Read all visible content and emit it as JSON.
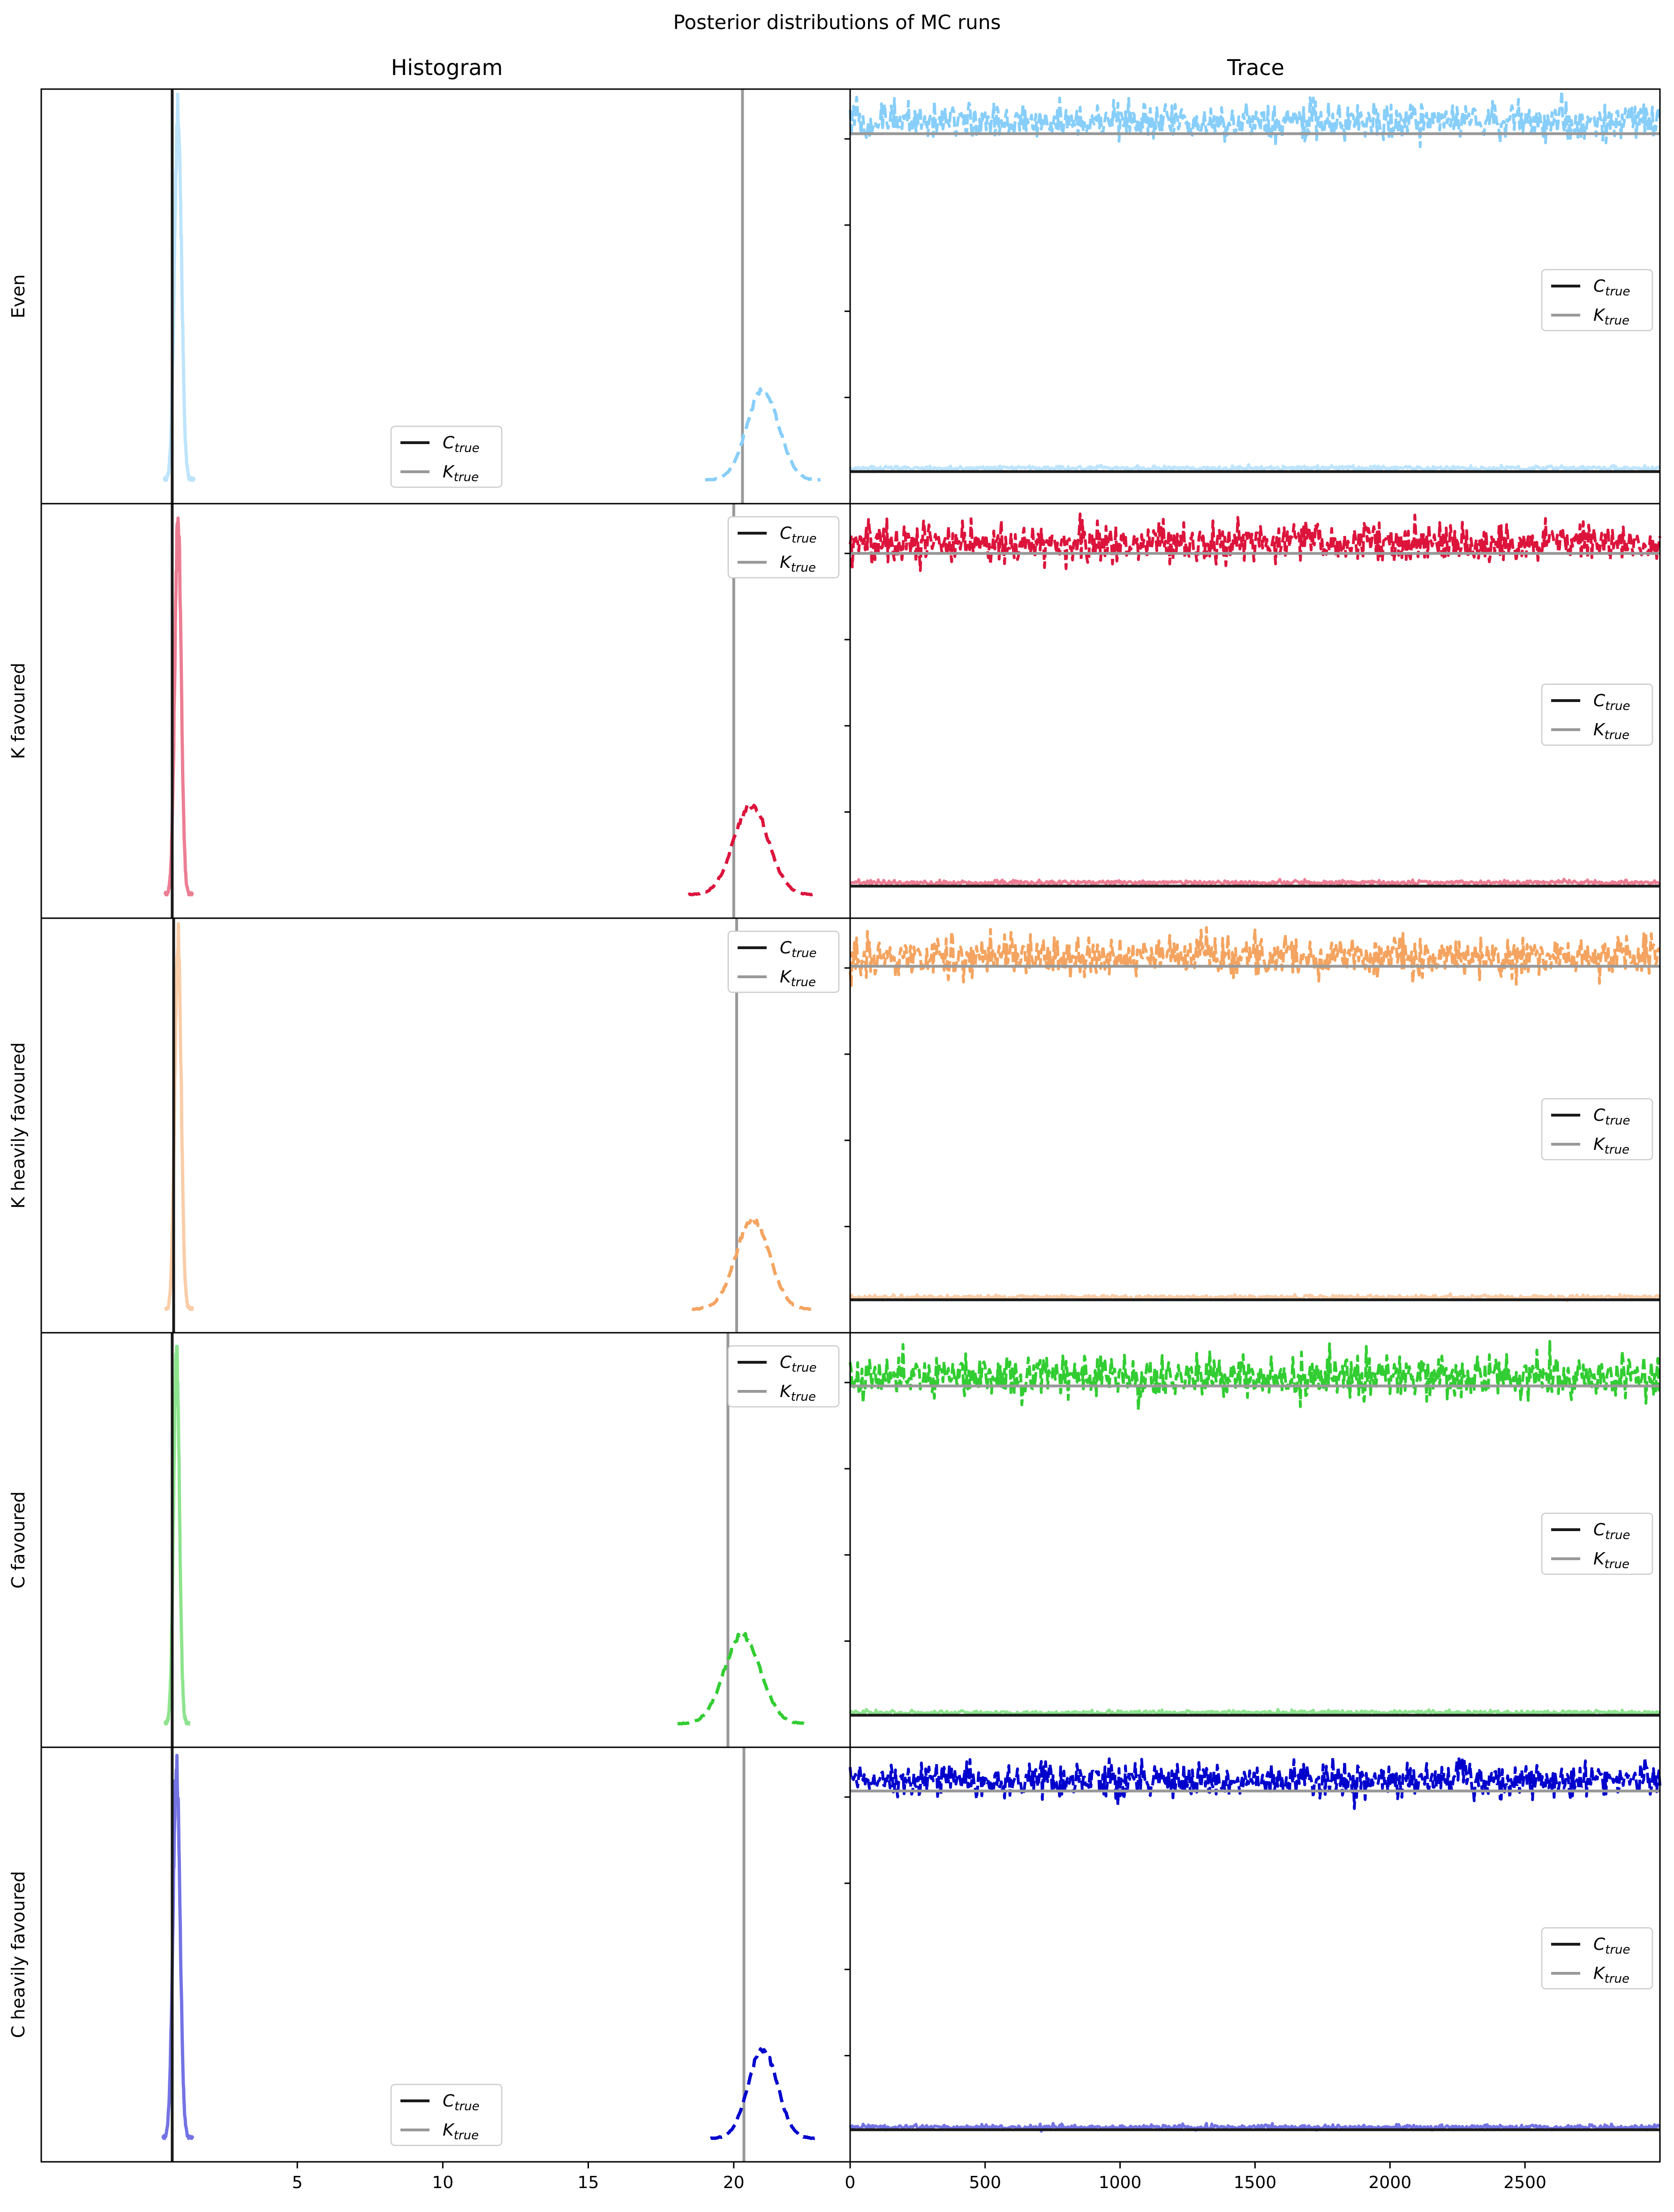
{
  "figure": {
    "suptitle": "Posterior distributions of MC runs",
    "col_titles": [
      "Histogram",
      "Trace"
    ]
  },
  "chart_data": [
    {
      "type": "line",
      "panel": "histogram",
      "row_label": "Even",
      "color": "#87cefa",
      "C_true": 0.7,
      "K_true": 20.3,
      "C_posterior": {
        "mean": 0.9,
        "sd": 0.12
      },
      "K_posterior": {
        "mean": 21.0,
        "sd": 0.55
      },
      "xlim": [
        -3.8,
        24
      ],
      "xticks": [
        5,
        10,
        15,
        20
      ],
      "legend": {
        "placement": "lower center",
        "entries": [
          "C_true",
          "K_true"
        ]
      }
    },
    {
      "type": "line",
      "panel": "histogram",
      "row_label": "K favoured",
      "color": "#dc143c",
      "C_true": 0.7,
      "K_true": 20.0,
      "C_posterior": {
        "mean": 0.9,
        "sd": 0.11
      },
      "K_posterior": {
        "mean": 20.6,
        "sd": 0.6
      },
      "xlim": [
        -3.8,
        24
      ],
      "xticks": [
        5,
        10,
        15,
        20
      ],
      "legend": {
        "placement": "upper right",
        "entries": [
          "C_true",
          "K_true"
        ]
      }
    },
    {
      "type": "line",
      "panel": "histogram",
      "row_label": "K heavily favoured",
      "color": "#f4a460",
      "C_true": 0.75,
      "K_true": 20.1,
      "C_posterior": {
        "mean": 0.9,
        "sd": 0.11
      },
      "K_posterior": {
        "mean": 20.65,
        "sd": 0.58
      },
      "xlim": [
        -3.8,
        24
      ],
      "xticks": [
        5,
        10,
        15,
        20
      ],
      "legend": {
        "placement": "upper right",
        "entries": [
          "C_true",
          "K_true"
        ]
      }
    },
    {
      "type": "line",
      "panel": "histogram",
      "row_label": "C favoured",
      "color": "#32cd32",
      "C_true": 0.7,
      "K_true": 19.8,
      "C_posterior": {
        "mean": 0.85,
        "sd": 0.1
      },
      "K_posterior": {
        "mean": 20.3,
        "sd": 0.62
      },
      "xlim": [
        -3.8,
        24
      ],
      "xticks": [
        5,
        10,
        15,
        20
      ],
      "legend": {
        "placement": "upper right",
        "entries": [
          "C_true",
          "K_true"
        ]
      }
    },
    {
      "type": "line",
      "panel": "histogram",
      "row_label": "C heavily favoured",
      "color": "#0000cd",
      "C_true": 0.7,
      "K_true": 20.35,
      "C_posterior": {
        "mean": 0.85,
        "sd": 0.12
      },
      "K_posterior": {
        "mean": 21.0,
        "sd": 0.5
      },
      "xlim": [
        -3.8,
        24
      ],
      "xticks": [
        5,
        10,
        15,
        20
      ],
      "legend": {
        "placement": "lower center",
        "entries": [
          "C_true",
          "K_true"
        ]
      }
    },
    {
      "type": "line",
      "panel": "trace",
      "row_label": "Even",
      "color": "#87cefa",
      "n_samples": 3000,
      "K_true": 20.3,
      "C_true": 0.7,
      "K_trace": {
        "mean": 21.0,
        "sd": 0.55
      },
      "C_trace": {
        "mean": 0.9,
        "sd": 0.12
      },
      "xlim": [
        0,
        3000
      ],
      "xticks": [
        0,
        500,
        1000,
        1500,
        2000,
        2500
      ],
      "legend": {
        "placement": "center right",
        "entries": [
          "C_true",
          "K_true"
        ]
      }
    },
    {
      "type": "line",
      "panel": "trace",
      "row_label": "K favoured",
      "color": "#dc143c",
      "n_samples": 3000,
      "K_true": 20.0,
      "C_true": 0.7,
      "K_trace": {
        "mean": 20.6,
        "sd": 0.6
      },
      "C_trace": {
        "mean": 0.9,
        "sd": 0.11
      },
      "xlim": [
        0,
        3000
      ],
      "xticks": [
        0,
        500,
        1000,
        1500,
        2000,
        2500
      ],
      "legend": {
        "placement": "center right",
        "entries": [
          "C_true",
          "K_true"
        ]
      }
    },
    {
      "type": "line",
      "panel": "trace",
      "row_label": "K heavily favoured",
      "color": "#f4a460",
      "n_samples": 3000,
      "K_true": 20.1,
      "C_true": 0.75,
      "K_trace": {
        "mean": 20.65,
        "sd": 0.58
      },
      "C_trace": {
        "mean": 0.9,
        "sd": 0.11
      },
      "xlim": [
        0,
        3000
      ],
      "xticks": [
        0,
        500,
        1000,
        1500,
        2000,
        2500
      ],
      "legend": {
        "placement": "center right",
        "entries": [
          "C_true",
          "K_true"
        ]
      }
    },
    {
      "type": "line",
      "panel": "trace",
      "row_label": "C favoured",
      "color": "#32cd32",
      "n_samples": 3000,
      "K_true": 19.8,
      "C_true": 0.7,
      "K_trace": {
        "mean": 20.3,
        "sd": 0.62
      },
      "C_trace": {
        "mean": 0.85,
        "sd": 0.1
      },
      "xlim": [
        0,
        3000
      ],
      "xticks": [
        0,
        500,
        1000,
        1500,
        2000,
        2500
      ],
      "legend": {
        "placement": "center right",
        "entries": [
          "C_true",
          "K_true"
        ]
      }
    },
    {
      "type": "line",
      "panel": "trace",
      "row_label": "C heavily favoured",
      "color": "#0000cd",
      "n_samples": 3000,
      "K_true": 20.35,
      "C_true": 0.7,
      "K_trace": {
        "mean": 21.0,
        "sd": 0.5
      },
      "C_trace": {
        "mean": 0.85,
        "sd": 0.12
      },
      "xlim": [
        0,
        3000
      ],
      "xticks": [
        0,
        500,
        1000,
        1500,
        2000,
        2500
      ],
      "legend": {
        "placement": "center right",
        "entries": [
          "C_true",
          "K_true"
        ]
      }
    }
  ],
  "legend_labels": {
    "c_main": "C",
    "k_main": "K",
    "sub": "true"
  },
  "colors": {
    "c_true": "#1a1a1a",
    "k_true": "#999999",
    "axes": "#000000"
  }
}
